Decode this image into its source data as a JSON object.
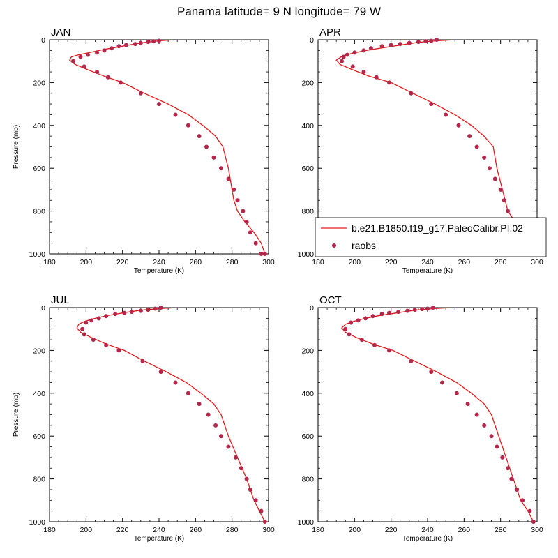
{
  "figure": {
    "title": "Panama  latitude= 9 N longitude= 79 W"
  },
  "legend": {
    "entries": [
      {
        "label": "b.e21.B1850.f19_g17.PaleoCalibr.PI.02",
        "style": "line",
        "color": "#e31a1c"
      },
      {
        "label": "raobs",
        "style": "marker",
        "color": "#b5274a"
      }
    ]
  },
  "chart_data": [
    {
      "type": "line",
      "title": "JAN",
      "xlabel": "Temperature (K)",
      "ylabel": "Pressure (mb)",
      "xlim": [
        180,
        300
      ],
      "ylim": [
        1000,
        0
      ],
      "xticks": [
        180,
        200,
        220,
        240,
        260,
        280,
        300
      ],
      "yticks": [
        0,
        200,
        400,
        600,
        800,
        1000
      ],
      "series": [
        {
          "name": "b.e21.B1850.f19_g17.PaleoCalibr.PI.02",
          "style": "line",
          "x": [
            249,
            240,
            230,
            220,
            210,
            202,
            196,
            192,
            191,
            194,
            201,
            210,
            220,
            232,
            245,
            256,
            264,
            271,
            275,
            278,
            280,
            281,
            283,
            287,
            292,
            296,
            298
          ],
          "y": [
            0,
            5,
            15,
            30,
            45,
            60,
            70,
            80,
            95,
            115,
            140,
            170,
            200,
            250,
            300,
            350,
            400,
            450,
            500,
            600,
            700,
            750,
            800,
            850,
            900,
            950,
            1000
          ]
        },
        {
          "name": "raobs",
          "style": "marker",
          "x": [
            240,
            237,
            234,
            230,
            227,
            222,
            218,
            214,
            210,
            206,
            201,
            197,
            193,
            193,
            199,
            206,
            212,
            219,
            230,
            240,
            249,
            256,
            262,
            266,
            270,
            274,
            278,
            281,
            283,
            286,
            288,
            290,
            293,
            296,
            298
          ],
          "y": [
            5,
            7,
            10,
            15,
            20,
            25,
            30,
            40,
            50,
            60,
            70,
            80,
            100,
            100,
            125,
            150,
            175,
            200,
            250,
            300,
            350,
            400,
            450,
            500,
            550,
            600,
            650,
            700,
            750,
            800,
            850,
            900,
            950,
            1000,
            1000
          ]
        }
      ]
    },
    {
      "type": "line",
      "title": "APR",
      "xlabel": "Temperature (K)",
      "ylabel": "",
      "xlim": [
        180,
        300
      ],
      "ylim": [
        1000,
        0
      ],
      "xticks": [
        180,
        200,
        220,
        240,
        260,
        280,
        300
      ],
      "yticks": [
        0,
        200,
        400,
        600,
        800,
        1000
      ],
      "series": [
        {
          "name": "b.e21.B1850.f19_g17.PaleoCalibr.PI.02",
          "style": "line",
          "x": [
            255,
            245,
            235,
            225,
            215,
            205,
            198,
            193,
            190,
            192,
            199,
            208,
            220,
            232,
            244,
            255,
            264,
            271,
            276,
            278,
            281,
            284,
            288,
            292,
            295,
            298
          ],
          "y": [
            0,
            5,
            12,
            25,
            38,
            52,
            65,
            78,
            95,
            115,
            140,
            170,
            200,
            250,
            300,
            350,
            400,
            450,
            500,
            600,
            700,
            800,
            850,
            900,
            950,
            1000
          ]
        },
        {
          "name": "raobs",
          "style": "marker",
          "x": [
            245,
            242,
            239,
            235,
            230,
            225,
            220,
            215,
            209,
            205,
            200,
            196,
            194,
            193,
            199,
            205,
            212,
            219,
            231,
            242,
            250,
            257,
            263,
            267,
            271,
            274,
            277,
            280,
            282,
            284,
            286,
            289,
            291,
            293,
            295,
            298
          ],
          "y": [
            0,
            5,
            7,
            10,
            15,
            20,
            25,
            30,
            40,
            50,
            60,
            70,
            80,
            100,
            125,
            150,
            175,
            200,
            250,
            300,
            350,
            400,
            450,
            500,
            550,
            600,
            650,
            700,
            750,
            800,
            850,
            900,
            950,
            1000,
            950,
            1000
          ]
        }
      ]
    },
    {
      "type": "line",
      "title": "JUL",
      "xlabel": "Temperature (K)",
      "ylabel": "Pressure (mb)",
      "xlim": [
        180,
        300
      ],
      "ylim": [
        1000,
        0
      ],
      "xticks": [
        180,
        200,
        220,
        240,
        260,
        280,
        300
      ],
      "yticks": [
        0,
        200,
        400,
        600,
        800,
        1000
      ],
      "series": [
        {
          "name": "b.e21.B1850.f19_g17.PaleoCalibr.PI.02",
          "style": "line",
          "x": [
            250,
            240,
            230,
            220,
            211,
            204,
            199,
            196,
            195,
            197,
            203,
            211,
            221,
            232,
            244,
            255,
            263,
            270,
            274,
            278,
            283,
            288,
            292,
            295,
            298
          ],
          "y": [
            0,
            5,
            12,
            25,
            38,
            52,
            65,
            78,
            95,
            115,
            140,
            170,
            200,
            250,
            300,
            350,
            400,
            450,
            500,
            600,
            700,
            800,
            900,
            950,
            1000
          ]
        },
        {
          "name": "raobs",
          "style": "marker",
          "x": [
            241,
            238,
            234,
            230,
            225,
            221,
            216,
            211,
            207,
            203,
            200,
            198,
            199,
            204,
            211,
            218,
            231,
            241,
            249,
            256,
            262,
            267,
            271,
            274,
            278,
            282,
            285,
            288,
            290,
            293,
            296,
            298
          ],
          "y": [
            0,
            5,
            10,
            15,
            20,
            25,
            30,
            40,
            50,
            60,
            70,
            100,
            125,
            150,
            175,
            200,
            250,
            300,
            350,
            400,
            450,
            500,
            550,
            600,
            650,
            700,
            750,
            800,
            850,
            900,
            950,
            1000
          ]
        }
      ]
    },
    {
      "type": "line",
      "title": "OCT",
      "xlabel": "Temperature (K)",
      "ylabel": "",
      "xlim": [
        180,
        300
      ],
      "ylim": [
        1000,
        0
      ],
      "xticks": [
        180,
        200,
        220,
        240,
        260,
        280,
        300
      ],
      "yticks": [
        0,
        200,
        400,
        600,
        800,
        1000
      ],
      "series": [
        {
          "name": "b.e21.B1850.f19_g17.PaleoCalibr.PI.02",
          "style": "line",
          "x": [
            253,
            243,
            233,
            223,
            213,
            205,
            199,
            195,
            193,
            195,
            201,
            210,
            221,
            233,
            245,
            256,
            264,
            271,
            275,
            279,
            283,
            287,
            291,
            295,
            298
          ],
          "y": [
            0,
            5,
            12,
            25,
            38,
            52,
            65,
            78,
            95,
            115,
            140,
            170,
            200,
            250,
            300,
            350,
            400,
            450,
            500,
            600,
            700,
            800,
            900,
            950,
            1000
          ]
        },
        {
          "name": "raobs",
          "style": "marker",
          "x": [
            243,
            240,
            237,
            233,
            229,
            224,
            219,
            215,
            210,
            206,
            202,
            198,
            195,
            197,
            204,
            211,
            219,
            231,
            242,
            248,
            256,
            262,
            267,
            271,
            275,
            278,
            281,
            284,
            286,
            289,
            292,
            296,
            298
          ],
          "y": [
            0,
            5,
            7,
            10,
            15,
            20,
            25,
            30,
            40,
            50,
            60,
            70,
            100,
            125,
            150,
            175,
            200,
            250,
            300,
            350,
            400,
            450,
            500,
            550,
            600,
            650,
            700,
            750,
            800,
            850,
            900,
            950,
            1000
          ]
        }
      ]
    }
  ]
}
